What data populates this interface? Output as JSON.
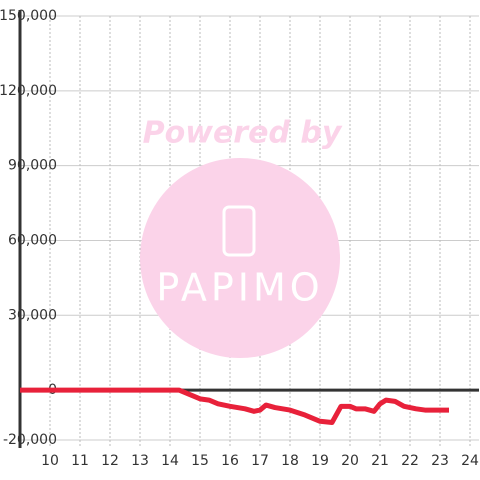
{
  "chart_data": {
    "type": "line",
    "watermark": {
      "line1": "Powered by",
      "line2": "PAPIMO"
    },
    "x": [
      9,
      14.3,
      14.6,
      15,
      15.3,
      15.6,
      16,
      16.5,
      16.8,
      17,
      17.2,
      17.5,
      18,
      18.5,
      19,
      19.4,
      19.7,
      20,
      20.2,
      20.5,
      20.8,
      21,
      21.2,
      21.5,
      21.8,
      22.2,
      22.5,
      23.3
    ],
    "series": [
      {
        "color": "#e8213a",
        "values": [
          0,
          0,
          -1500,
          -3500,
          -4000,
          -5500,
          -6500,
          -7500,
          -8500,
          -8000,
          -6000,
          -7000,
          -8000,
          -10000,
          -12500,
          -13000,
          -6500,
          -6500,
          -7500,
          -7500,
          -8500,
          -5500,
          -4000,
          -4500,
          -6500,
          -7500,
          -8000,
          -8000
        ]
      }
    ],
    "xlim": [
      9,
      24.3
    ],
    "xticks": [
      10,
      11,
      12,
      13,
      14,
      15,
      16,
      17,
      18,
      19,
      20,
      21,
      22,
      23,
      24
    ],
    "ylim": [
      -20000,
      150000
    ],
    "yticks": [
      {
        "value": -20000,
        "label": "-20,000"
      },
      0,
      {
        "value": 30000,
        "label": "30,000"
      },
      {
        "value": 60000,
        "label": "60,000"
      },
      {
        "value": 90000,
        "label": "90,000"
      },
      {
        "value": 120000,
        "label": "120,000"
      },
      {
        "value": 150000,
        "label": "150,000"
      }
    ],
    "grid": true
  }
}
